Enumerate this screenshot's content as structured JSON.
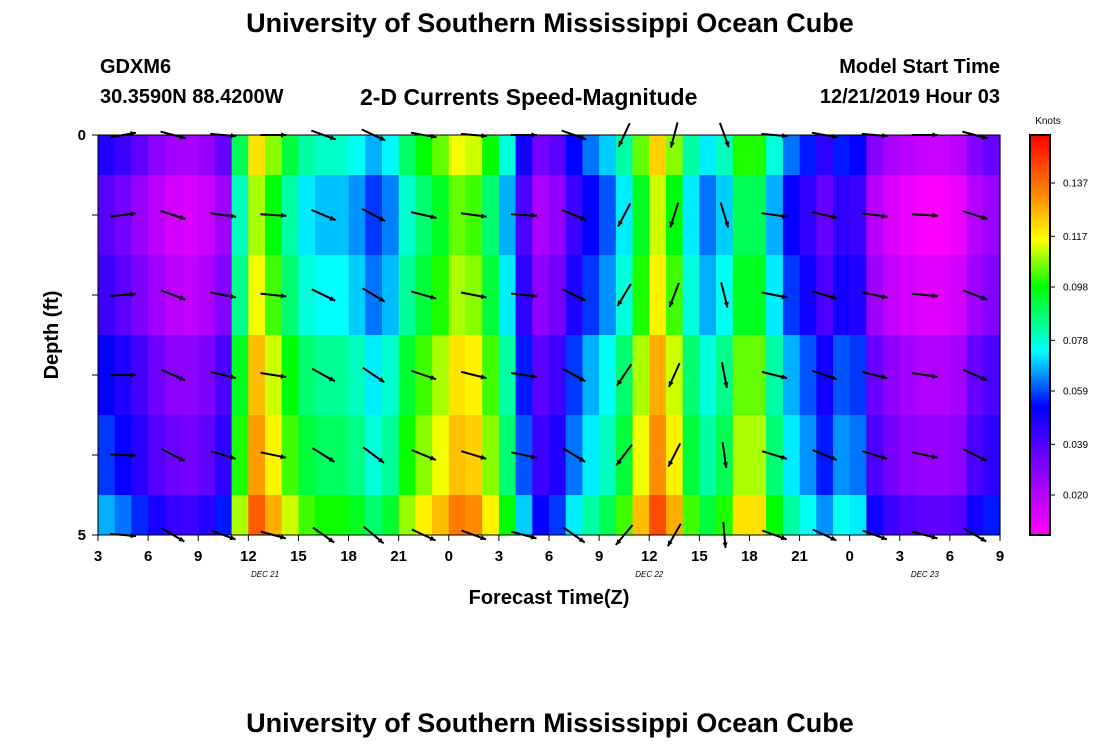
{
  "header": {
    "title": "University of Southern Mississippi Ocean Cube",
    "station": "GDXM6",
    "coords": "30.3590N 88.4200W",
    "subtitle": "2-D Currents Speed-Magnitude",
    "model_start_label": "Model Start Time",
    "model_start_value": "12/21/2019 Hour 03"
  },
  "footer": {
    "title": "University of Southern Mississippi Ocean Cube"
  },
  "chart_data": {
    "type": "heatmap",
    "title": "2-D Currents Speed-Magnitude",
    "xlabel": "Forecast Time(Z)",
    "ylabel": "Depth (ft)",
    "x_tick_labels": [
      "3",
      "6",
      "9",
      "12",
      "15",
      "18",
      "21",
      "0",
      "3",
      "6",
      "9",
      "12",
      "15",
      "18",
      "21",
      "0",
      "3",
      "6",
      "9"
    ],
    "x_tick_hours": [
      0,
      3,
      6,
      9,
      12,
      15,
      18,
      21,
      24,
      27,
      30,
      33,
      36,
      39,
      42,
      45,
      48,
      51,
      54
    ],
    "x_range_hours": [
      0,
      54
    ],
    "date_labels": [
      {
        "label": "DEC 21",
        "hour": 10
      },
      {
        "label": "DEC 22",
        "hour": 33
      },
      {
        "label": "DEC 23",
        "hour": 49.5
      }
    ],
    "y_tick_labels": [
      "0",
      "5"
    ],
    "y_range": [
      0,
      5
    ],
    "depth_levels": [
      0,
      1,
      2,
      3,
      4,
      5
    ],
    "colorbar": {
      "title": "Knots",
      "ticks": [
        "0.020",
        "0.039",
        "0.059",
        "0.078",
        "0.098",
        "0.117",
        "0.137"
      ],
      "tick_values": [
        0.02,
        0.039,
        0.059,
        0.078,
        0.098,
        0.117,
        0.137
      ],
      "range": [
        0.005,
        0.155
      ]
    },
    "speed_profile": [
      {
        "hour": 0,
        "speed": 0.05
      },
      {
        "hour": 2,
        "speed": 0.04
      },
      {
        "hour": 4,
        "speed": 0.025
      },
      {
        "hour": 6,
        "speed": 0.022
      },
      {
        "hour": 7.5,
        "speed": 0.035
      },
      {
        "hour": 8.5,
        "speed": 0.09
      },
      {
        "hour": 9,
        "speed": 0.125
      },
      {
        "hour": 10,
        "speed": 0.115
      },
      {
        "hour": 11,
        "speed": 0.1
      },
      {
        "hour": 12,
        "speed": 0.085
      },
      {
        "hour": 13,
        "speed": 0.08
      },
      {
        "hour": 14,
        "speed": 0.078
      },
      {
        "hour": 15,
        "speed": 0.08
      },
      {
        "hour": 16,
        "speed": 0.07
      },
      {
        "hour": 17,
        "speed": 0.065
      },
      {
        "hour": 18,
        "speed": 0.082
      },
      {
        "hour": 19,
        "speed": 0.095
      },
      {
        "hour": 20,
        "speed": 0.1
      },
      {
        "hour": 21,
        "speed": 0.11
      },
      {
        "hour": 22,
        "speed": 0.12
      },
      {
        "hour": 23,
        "speed": 0.105
      },
      {
        "hour": 24,
        "speed": 0.09
      },
      {
        "hour": 25,
        "speed": 0.065
      },
      {
        "hour": 26,
        "speed": 0.035
      },
      {
        "hour": 27,
        "speed": 0.03
      },
      {
        "hour": 28,
        "speed": 0.045
      },
      {
        "hour": 29,
        "speed": 0.06
      },
      {
        "hour": 30,
        "speed": 0.065
      },
      {
        "hour": 31,
        "speed": 0.075
      },
      {
        "hour": 32,
        "speed": 0.09
      },
      {
        "hour": 33,
        "speed": 0.12
      },
      {
        "hour": 34,
        "speed": 0.125
      },
      {
        "hour": 35,
        "speed": 0.09
      },
      {
        "hour": 36,
        "speed": 0.075
      },
      {
        "hour": 37,
        "speed": 0.07
      },
      {
        "hour": 38,
        "speed": 0.09
      },
      {
        "hour": 39,
        "speed": 0.11
      },
      {
        "hour": 40,
        "speed": 0.09
      },
      {
        "hour": 41,
        "speed": 0.065
      },
      {
        "hour": 42,
        "speed": 0.06
      },
      {
        "hour": 43,
        "speed": 0.05
      },
      {
        "hour": 44,
        "speed": 0.04
      },
      {
        "hour": 45,
        "speed": 0.07
      },
      {
        "hour": 46,
        "speed": 0.035
      },
      {
        "hour": 47,
        "speed": 0.025
      },
      {
        "hour": 48,
        "speed": 0.02
      },
      {
        "hour": 50,
        "speed": 0.015
      },
      {
        "hour": 52,
        "speed": 0.02
      },
      {
        "hour": 53,
        "speed": 0.04
      },
      {
        "hour": 54,
        "speed": 0.03
      }
    ],
    "depth_offsets": [
      0,
      -0.01,
      -0.005,
      0.005,
      0.01,
      0.02
    ],
    "vector_angles_deg": [
      -10,
      15,
      5,
      0,
      20,
      25,
      10,
      5,
      0,
      20,
      115,
      105,
      70,
      5,
      10,
      5,
      0,
      15,
      10
    ],
    "vector_speed_scale": 1.0
  }
}
